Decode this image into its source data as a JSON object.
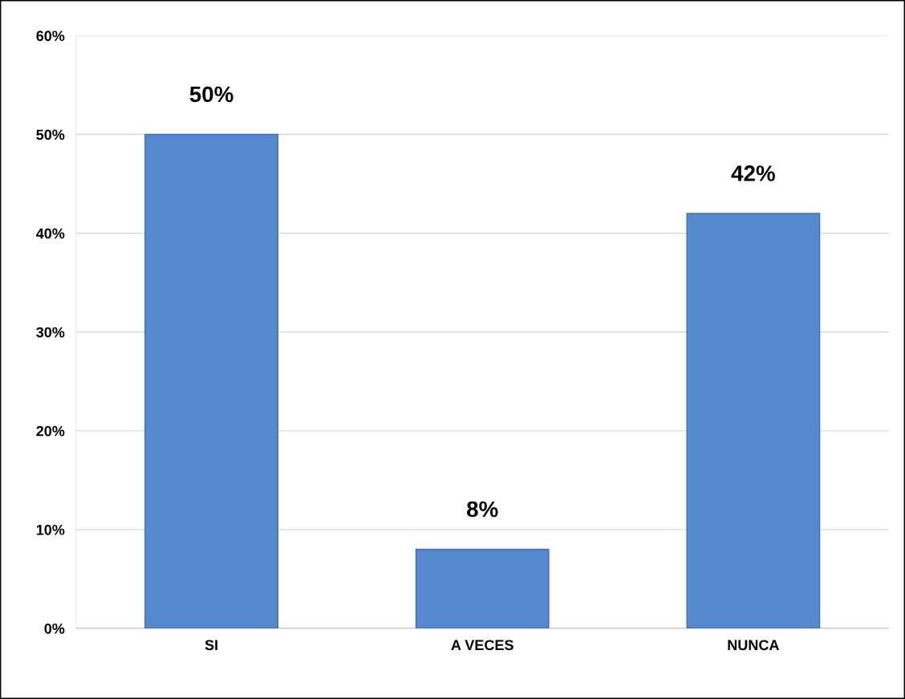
{
  "chart_data": {
    "type": "bar",
    "categories": [
      "SI",
      "A VECES",
      "NUNCA"
    ],
    "values": [
      50,
      8,
      42
    ],
    "value_labels": [
      "50%",
      "8%",
      "42%"
    ],
    "color": "#5588cc",
    "ylim": [
      0,
      60
    ],
    "yticks": [
      {
        "value": 0,
        "label": "0%"
      },
      {
        "value": 10,
        "label": "10%"
      },
      {
        "value": 20,
        "label": "20%"
      },
      {
        "value": 30,
        "label": "30%"
      },
      {
        "value": 40,
        "label": "40%"
      },
      {
        "value": 50,
        "label": "50%"
      },
      {
        "value": 60,
        "label": "60%"
      }
    ],
    "grid": "y",
    "legend": false
  }
}
